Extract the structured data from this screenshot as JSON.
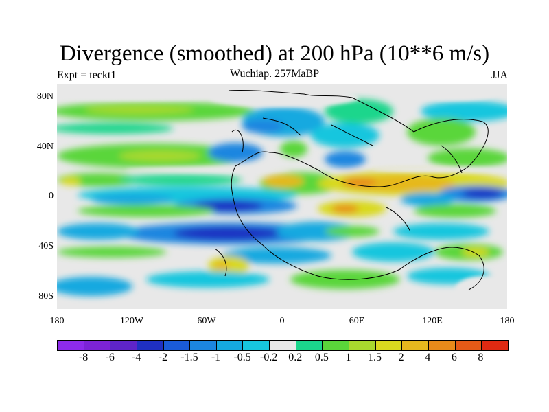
{
  "title": "Divergence (smoothed) at 200 hPa (10**6 m/s)",
  "subtitle_left": "Expt = teckt1",
  "subtitle_center": "Wuchiap. 257MaBP",
  "subtitle_right": "JJA",
  "lat_ticks": [
    "80N",
    "40N",
    "0",
    "40S",
    "80S"
  ],
  "lon_ticks": [
    "180",
    "120W",
    "60W",
    "0",
    "60E",
    "120E",
    "180"
  ],
  "colorbar": {
    "colors": [
      "#8d2bea",
      "#7c23d6",
      "#5e24c8",
      "#1f30c2",
      "#1a5bd8",
      "#1c86e0",
      "#15a9e0",
      "#17c6de",
      "#e8e8e8",
      "#1bd68c",
      "#5ad63a",
      "#a8d92e",
      "#d9d91f",
      "#e6b81e",
      "#e88a1a",
      "#e45a17",
      "#e02a12"
    ],
    "labels": [
      "-8",
      "-6",
      "-4",
      "-2",
      "-1.5",
      "-1",
      "-0.5",
      "-0.2",
      "0.2",
      "0.5",
      "1",
      "1.5",
      "2",
      "4",
      "6",
      "8"
    ]
  },
  "chart_data": {
    "type": "contour-map",
    "title": "Divergence (smoothed) at 200 hPa (10**6 m/s)",
    "variable": "Divergence",
    "units": "10**6 m/s",
    "level": "200 hPa",
    "season": "JJA",
    "experiment": "teckt1",
    "period": "Wuchiap. 257MaBP",
    "lat_range": [
      -90,
      90
    ],
    "lon_range": [
      -180,
      180
    ],
    "contour_levels": [
      -8,
      -6,
      -4,
      -2,
      -1.5,
      -1,
      -0.5,
      -0.2,
      0.2,
      0.5,
      1,
      1.5,
      2,
      4,
      6,
      8
    ]
  }
}
